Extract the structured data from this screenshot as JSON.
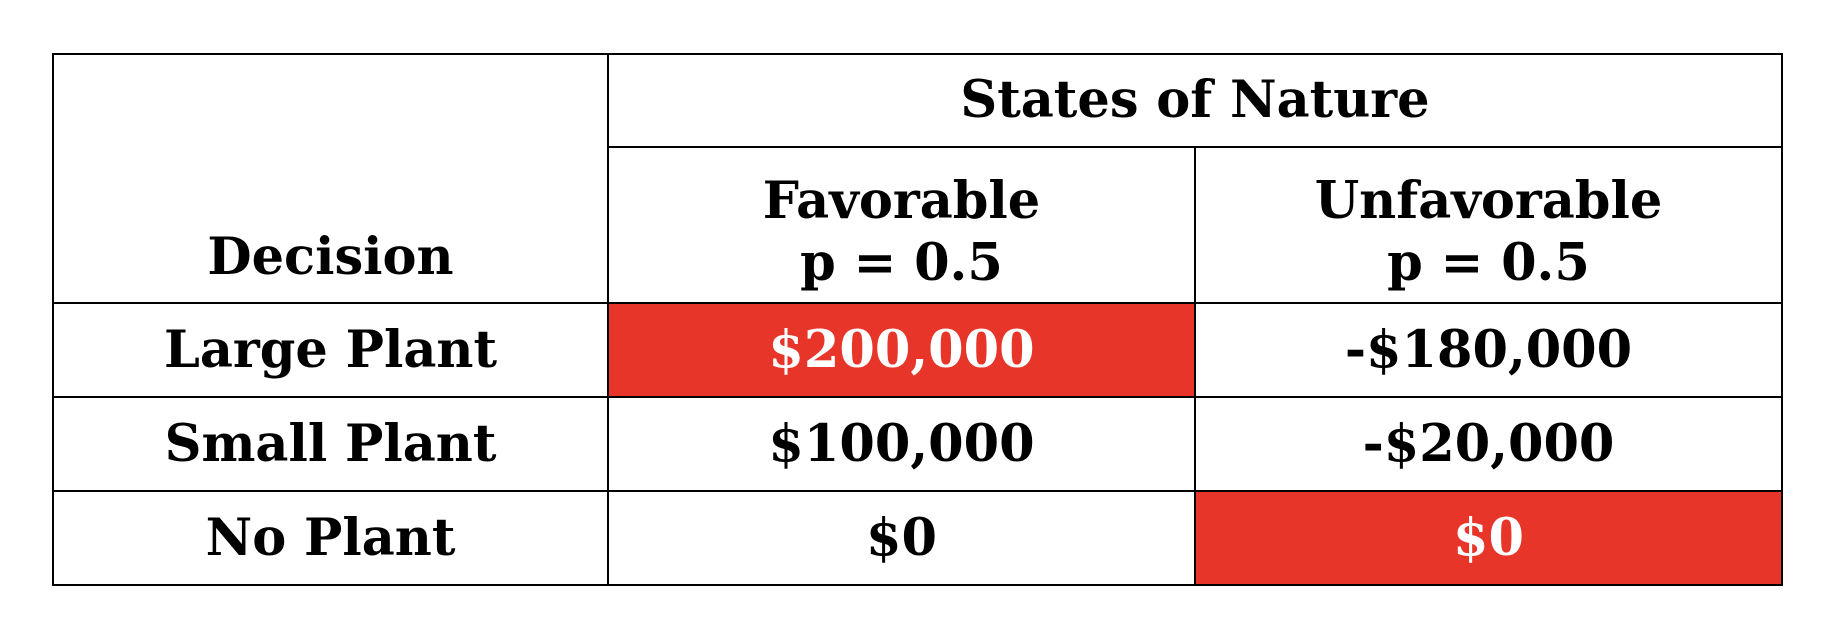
{
  "header": {
    "decision": "Decision",
    "states_of_nature": "States of Nature",
    "states": [
      {
        "name": "Favorable",
        "probability": "p = 0.5"
      },
      {
        "name": "Unfavorable",
        "probability": "p = 0.5"
      }
    ]
  },
  "rows": [
    {
      "decision": "Large Plant",
      "favorable": "$200,000",
      "unfavorable": "-$180,000"
    },
    {
      "decision": "Small Plant",
      "favorable": "$100,000",
      "unfavorable": "-$20,000"
    },
    {
      "decision": "No Plant",
      "favorable": "$0",
      "unfavorable": "$0"
    }
  ],
  "highlights": [
    {
      "row": "Large Plant",
      "column": "Favorable"
    },
    {
      "row": "No Plant",
      "column": "Unfavorable"
    }
  ],
  "colors": {
    "highlight_background": "#e8352a",
    "highlight_text": "#ffffff",
    "border": "#000000"
  }
}
